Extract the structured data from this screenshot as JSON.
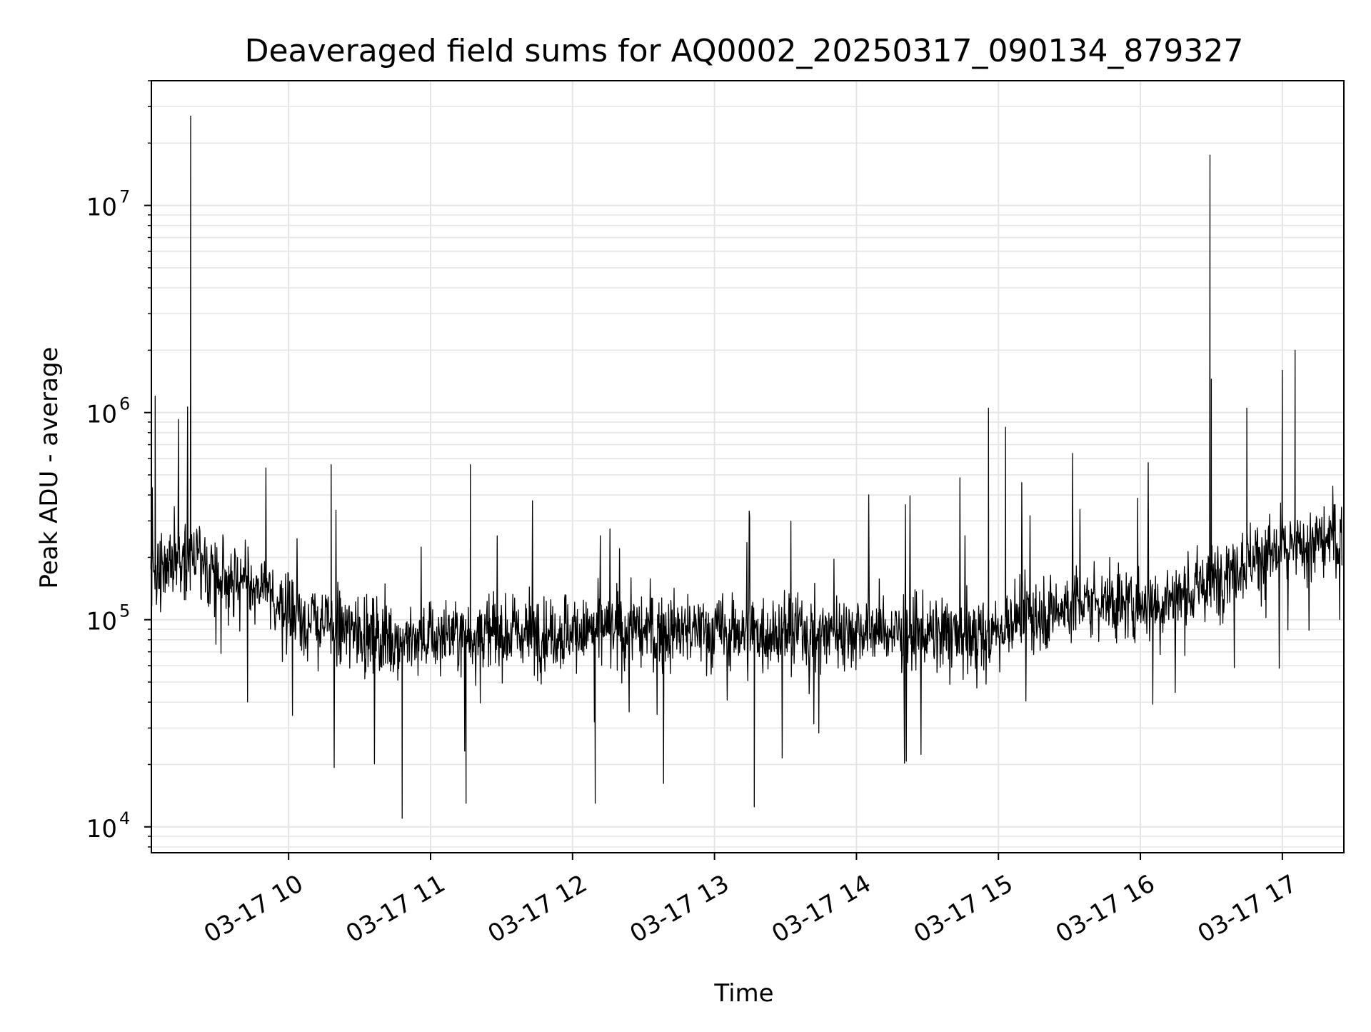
{
  "chart_data": {
    "type": "line",
    "title": "Deaveraged field sums for AQ0002_20250317_090134_879327",
    "xlabel": "Time",
    "ylabel": "Peak ADU - average",
    "y_scale": "log",
    "xlim": [
      "2025-03-17 09:02",
      "2025-03-17 17:26"
    ],
    "ylim": [
      7500,
      40000000
    ],
    "x_ticks": [
      "03-17 10",
      "03-17 11",
      "03-17 12",
      "03-17 13",
      "03-17 14",
      "03-17 15",
      "03-17 16",
      "03-17 17"
    ],
    "x_tick_hours": [
      10,
      11,
      12,
      13,
      14,
      15,
      16,
      17
    ],
    "y_ticks": [
      {
        "value": 10000,
        "base": "10",
        "exp": "4"
      },
      {
        "value": 100000,
        "base": "10",
        "exp": "5"
      },
      {
        "value": 1000000,
        "base": "10",
        "exp": "6"
      },
      {
        "value": 10000000,
        "base": "10",
        "exp": "7"
      }
    ],
    "grid": true,
    "line_color": "#000000",
    "grid_color": "#e5e5e5",
    "series": [
      {
        "x_hours": [
          9.03,
          9.08,
          9.15,
          9.22,
          9.3,
          9.35,
          9.4,
          9.5,
          9.6,
          9.7,
          9.8,
          9.9,
          10.0,
          10.1,
          10.2,
          10.3,
          10.4,
          10.5,
          10.6,
          10.7,
          10.8,
          10.9,
          11.0,
          11.1,
          11.2,
          11.3,
          11.4,
          11.5,
          11.6,
          11.7,
          11.8,
          11.9,
          12.0,
          12.1,
          12.2,
          12.3,
          12.4,
          12.5,
          12.6,
          12.7,
          12.8,
          12.9,
          13.0,
          13.1,
          13.2,
          13.3,
          13.4,
          13.5,
          13.6,
          13.7,
          13.8,
          13.9,
          14.0,
          14.1,
          14.2,
          14.3,
          14.4,
          14.5,
          14.6,
          14.7,
          14.8,
          14.9,
          14.95,
          15.0,
          15.05,
          15.1,
          15.2,
          15.3,
          15.4,
          15.5,
          15.6,
          15.7,
          15.8,
          15.9,
          16.0,
          16.1,
          16.2,
          16.3,
          16.4,
          16.5,
          16.55,
          16.6,
          16.7,
          16.8,
          16.9,
          17.0,
          17.1,
          17.2,
          17.3,
          17.42
        ],
        "values": [
          160000,
          175000,
          190000,
          200000,
          210000,
          195000,
          180000,
          170000,
          160000,
          150000,
          135000,
          120000,
          110000,
          100000,
          95000,
          92000,
          90000,
          88000,
          85000,
          82000,
          80000,
          80000,
          82000,
          84000,
          85000,
          85000,
          86000,
          86000,
          86000,
          87000,
          87000,
          87000,
          88000,
          88000,
          88000,
          88000,
          88000,
          88000,
          88000,
          88000,
          88000,
          88000,
          88000,
          88000,
          88000,
          88000,
          88000,
          88000,
          88000,
          88000,
          88000,
          88000,
          90000,
          90000,
          88000,
          87000,
          86000,
          85000,
          84000,
          83000,
          82000,
          82000,
          85000,
          90000,
          95000,
          100000,
          105000,
          108000,
          110000,
          115000,
          120000,
          125000,
          120000,
          118000,
          120000,
          122000,
          125000,
          130000,
          140000,
          150000,
          160000,
          175000,
          190000,
          200000,
          210000,
          215000,
          220000,
          230000,
          240000,
          255000
        ]
      }
    ],
    "notable_peaks": [
      {
        "x_hours": 9.06,
        "value": 1200000
      },
      {
        "x_hours": 9.31,
        "value": 27000000
      },
      {
        "x_hours": 10.3,
        "value": 560000
      },
      {
        "x_hours": 11.28,
        "value": 560000
      },
      {
        "x_hours": 14.93,
        "value": 1050000
      },
      {
        "x_hours": 15.05,
        "value": 850000
      },
      {
        "x_hours": 16.49,
        "value": 17500000
      },
      {
        "x_hours": 16.5,
        "value": 1450000
      },
      {
        "x_hours": 16.75,
        "value": 1050000
      },
      {
        "x_hours": 17.0,
        "value": 1600000
      },
      {
        "x_hours": 17.09,
        "value": 2000000
      }
    ],
    "notable_dips": [
      {
        "x_hours": 10.8,
        "value": 11000
      },
      {
        "x_hours": 11.25,
        "value": 13000
      },
      {
        "x_hours": 12.16,
        "value": 13000
      },
      {
        "x_hours": 13.28,
        "value": 12500
      }
    ]
  }
}
